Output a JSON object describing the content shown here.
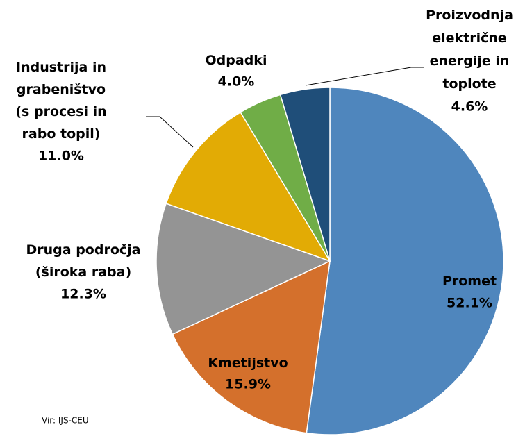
{
  "chart_data": {
    "type": "pie",
    "categories": [
      "Promet",
      "Kmetijstvo",
      "Druga področja\n(široka raba)",
      "Industrija in\ngrabeništvo\n(s procesi in\nrabo topil)",
      "Odpadki",
      "Proizvodnja\nelektrične\nenergije in\ntoplote"
    ],
    "values": [
      52.1,
      15.9,
      12.3,
      11.0,
      4.0,
      4.6
    ],
    "value_labels": [
      "52.1%",
      "15.9%",
      "12.3%",
      "11.0%",
      "4.0%",
      "4.6%"
    ],
    "colors": [
      "#4f86bd",
      "#d4702c",
      "#949494",
      "#e2ab05",
      "#70ad47",
      "#1f4e79"
    ],
    "source": "Vir: IJS-CEU"
  }
}
